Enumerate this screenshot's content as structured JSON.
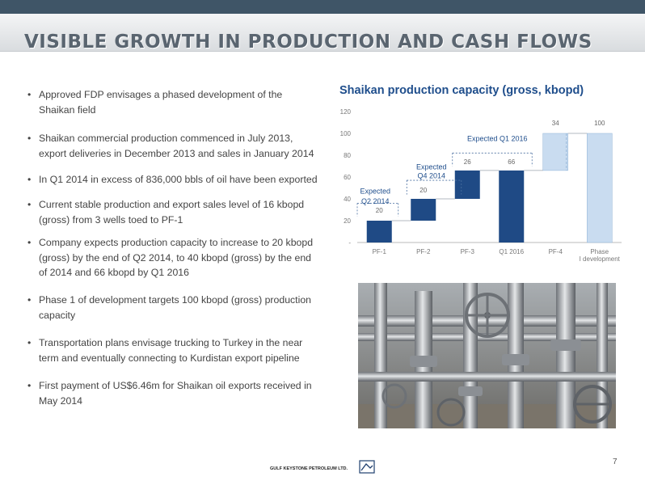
{
  "header": {
    "title": "VISIBLE GROWTH IN PRODUCTION AND CASH FLOWS",
    "colors": {
      "topbar": "#3f5567",
      "title_text": "#5a6570"
    }
  },
  "bullets": [
    "Approved FDP envisages a phased development of the Shaikan field",
    "Shaikan commercial production commenced in July 2013, export deliveries in December 2013 and sales in January 2014",
    "In Q1 2014 in excess of 836,000 bbls of oil have been exported",
    "Current stable production and export sales level of 16 kbopd (gross) from 3 wells toed to PF-1",
    "Company expects production capacity to increase to 20 kbopd (gross) by the end of Q2 2014, to 40 kbopd (gross) by the end of 2014 and 66 kbopd by Q1 2016",
    "Phase 1 of development targets 100 kbopd (gross) production capacity",
    "Transportation plans envisage trucking to Turkey in the near term and eventually connecting to Kurdistan export pipeline",
    "First payment of US$6.46m for Shaikan oil exports received in May 2014"
  ],
  "chart_data": {
    "type": "bar",
    "subtype": "waterfall",
    "title": "Shaikan production capacity (gross, kbopd)",
    "categories": [
      "PF-1",
      "PF-2",
      "PF-3",
      "Q1 2016",
      "PF-4",
      "Phase I development"
    ],
    "values": [
      20,
      20,
      26,
      66,
      34,
      100
    ],
    "bases": [
      0,
      20,
      40,
      0,
      66,
      0
    ],
    "value_labels": [
      "20",
      "20",
      "26",
      "66",
      "34",
      "100"
    ],
    "expected_bars": [
      4,
      5
    ],
    "annotations": [
      {
        "text": "Expected Q2 2014",
        "category": "PF-1"
      },
      {
        "text": "Expected Q4 2014",
        "category": "PF-2"
      },
      {
        "text": "Expected Q1 2016",
        "category": "PF-3"
      }
    ],
    "ylim": [
      0,
      120
    ],
    "yticks": [
      "-",
      "20",
      "40",
      "60",
      "80",
      "100",
      "120"
    ],
    "grid": false,
    "colors": {
      "solid": "#1f4a85",
      "expected": "#c9dcf0",
      "title": "#1f4e8c"
    }
  },
  "footer": {
    "page_number": "7",
    "company_logo_text": "GULF KEYSTONE PETROLEUM LTD."
  }
}
